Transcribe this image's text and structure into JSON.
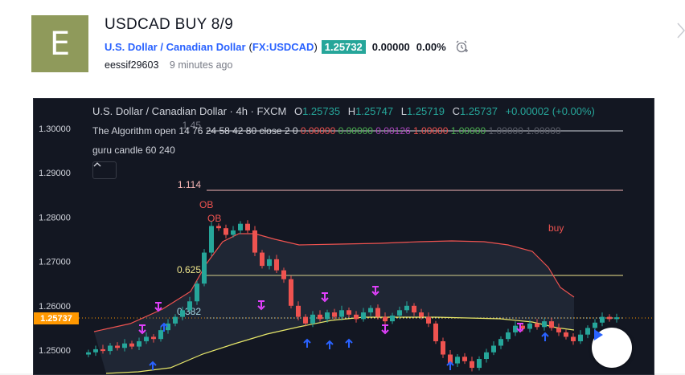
{
  "idea": {
    "avatar_letter": "E",
    "title": "USDCAD BUY 8/9",
    "symbol_name": "U.S. Dollar / Canadian Dollar",
    "symbol_open_paren": "(",
    "symbol_ticker": "FX:USDCAD",
    "symbol_close_paren": ")",
    "price": "1.25732",
    "change": "0.00000",
    "change_pct": "0.00%",
    "author": "eessif29603",
    "time_ago": "9 minutes ago"
  },
  "chart": {
    "symbol_title": "U.S. Dollar / Canadian Dollar · 4h · FXCM",
    "ohlc": {
      "o_label": "O",
      "o": "1.25735",
      "h_label": "H",
      "h": "1.25747",
      "l_label": "L",
      "l": "1.25719",
      "c_label": "C",
      "c": "1.25737",
      "change": "+0.00002 (+0.00%)"
    },
    "indicator1": {
      "name": "The Algorithm open 14 76 24 58 42 80 close 2 0",
      "values": [
        "0.00000",
        "0.00000",
        "0.00126",
        "1.00000",
        "1.00000",
        "1.00000",
        "1.00000"
      ],
      "value_colors": [
        "#ef5350",
        "#4caf50",
        "#ab47bc",
        "#ef5350",
        "#4caf50",
        "#5d606b",
        "#5d606b"
      ]
    },
    "indicator2": {
      "name": "guru candle 60 240"
    },
    "price_axis": [
      "1.30000",
      "1.29000",
      "1.28000",
      "1.27000",
      "1.26000",
      "1.25000"
    ],
    "current_price_label": "1.25737",
    "annotations": {
      "fib_1_45": "1.45",
      "fib_1_114": "1.114",
      "fib_0_625": "0.625",
      "fib_0_382": "0.382",
      "ob1": "OB",
      "ob2": "OB",
      "buy": "buy"
    },
    "colors": {
      "bull": "#26a69a",
      "bear": "#ef5350",
      "upper_band": "#ef5350",
      "lower_band": "#e8e86a",
      "current_price": "#ff9800"
    }
  }
}
